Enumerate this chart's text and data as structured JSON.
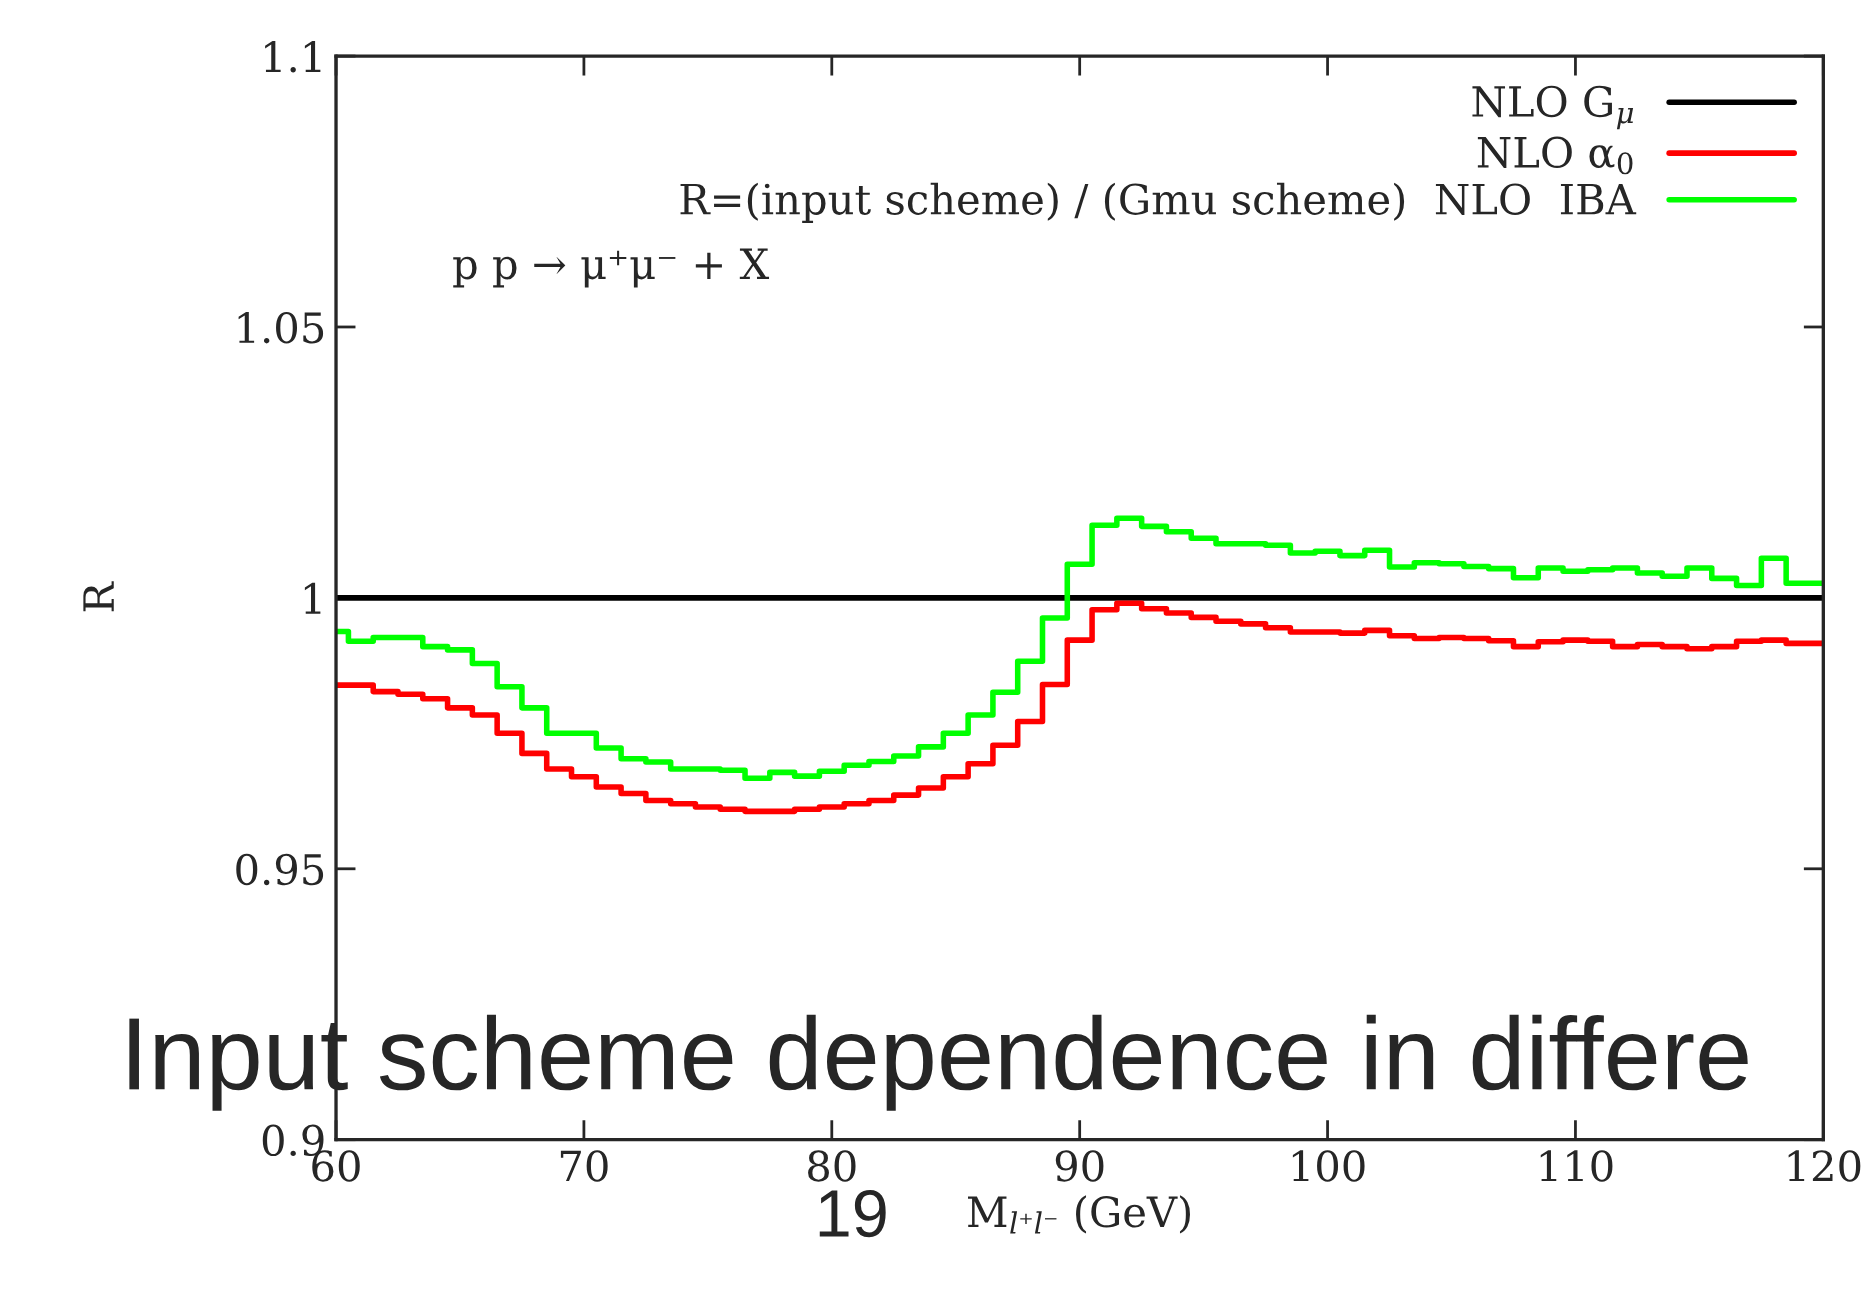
{
  "chart_data": {
    "type": "step",
    "xlabel": "M$_{l⁺l⁻}$ (GeV)",
    "ylabel": "R",
    "xlim": [
      60,
      120
    ],
    "xticks": [
      60,
      70,
      80,
      90,
      100,
      110,
      120
    ],
    "ylim": [
      0.9,
      1.1
    ],
    "yticks": [
      {
        "value": 0.9,
        "label": "0.9"
      },
      {
        "value": 0.95,
        "label": "0.95"
      },
      1,
      {
        "value": 1.05,
        "label": "1.05"
      },
      {
        "value": 1.1,
        "label": "1.1"
      }
    ],
    "grid": false,
    "legend": "top right",
    "line_style": "solid",
    "marker": "none",
    "series": [
      {
        "name": "NLO G$_{μ}$",
        "color": "#000000",
        "x": [
          60,
          120
        ],
        "values": [
          1,
          1
        ]
      },
      {
        "name": "NLO α$_{0}$",
        "color": "#ff0000",
        "x": [
          60,
          60.5,
          61.5,
          62.5,
          63.5,
          64.5,
          65.5,
          66.5,
          67.5,
          68.5,
          69.5,
          70.5,
          71.5,
          72.5,
          73.5,
          74.5,
          75.5,
          76.5,
          77.5,
          78.5,
          79.5,
          80.5,
          81.5,
          82.5,
          83.5,
          84.5,
          85.5,
          86.5,
          87.5,
          88.5,
          89.5,
          90.5,
          91.5,
          92.5,
          93.5,
          94.5,
          95.5,
          96.5,
          97.5,
          98.5,
          99.5,
          100.5,
          101.5,
          102.5,
          103.5,
          104.5,
          105.5,
          106.5,
          107.5,
          108.5,
          109.5,
          110.5,
          111.5,
          112.5,
          113.5,
          114.5,
          115.5,
          116.5,
          117.5,
          118.5,
          119.5,
          120
        ],
        "values": [
          0.9839,
          0.9839,
          0.9827,
          0.9822,
          0.9814,
          0.9797,
          0.9784,
          0.975,
          0.9713,
          0.9684,
          0.967,
          0.9651,
          0.9639,
          0.9626,
          0.962,
          0.9614,
          0.961,
          0.9606,
          0.9606,
          0.961,
          0.9614,
          0.962,
          0.9626,
          0.9636,
          0.9649,
          0.967,
          0.9694,
          0.9728,
          0.9772,
          0.984,
          0.9922,
          0.9978,
          0.999,
          0.998,
          0.9972,
          0.9964,
          0.9957,
          0.9952,
          0.9945,
          0.9937,
          0.9937,
          0.9935,
          0.994,
          0.993,
          0.9925,
          0.9927,
          0.9925,
          0.9921,
          0.991,
          0.9919,
          0.9922,
          0.992,
          0.991,
          0.9914,
          0.991,
          0.9906,
          0.991,
          0.992,
          0.9922,
          0.9916,
          0.9916,
          0.9916
        ]
      },
      {
        "name": "R=(input scheme) / (Gmu scheme)  NLO  IBA",
        "color": "#00ff00",
        "x": [
          60,
          60.5,
          61.5,
          62.5,
          63.5,
          64.5,
          65.5,
          66.5,
          67.5,
          68.5,
          69.5,
          70.5,
          71.5,
          72.5,
          73.5,
          74.5,
          75.5,
          76.5,
          77.5,
          78.5,
          79.5,
          80.5,
          81.5,
          82.5,
          83.5,
          84.5,
          85.5,
          86.5,
          87.5,
          88.5,
          89.5,
          90.5,
          91.5,
          92.5,
          93.5,
          94.5,
          95.5,
          96.5,
          97.5,
          98.5,
          99.5,
          100.5,
          101.5,
          102.5,
          103.5,
          104.5,
          105.5,
          106.5,
          107.5,
          108.5,
          109.5,
          110.5,
          111.5,
          112.5,
          113.5,
          114.5,
          115.5,
          116.5,
          117.5,
          118.5,
          119.5,
          120
        ],
        "values": [
          0.9938,
          0.992,
          0.9927,
          0.9927,
          0.991,
          0.9904,
          0.9879,
          0.9836,
          0.9797,
          0.975,
          0.975,
          0.9723,
          0.9703,
          0.9697,
          0.9684,
          0.9684,
          0.9682,
          0.9667,
          0.9678,
          0.9671,
          0.968,
          0.9691,
          0.9698,
          0.9708,
          0.9725,
          0.975,
          0.9784,
          0.9826,
          0.9883,
          0.9963,
          1.0062,
          1.0134,
          1.0147,
          1.0132,
          1.0122,
          1.011,
          1.01,
          1.01,
          1.0097,
          1.0083,
          1.0086,
          1.0078,
          1.0088,
          1.0057,
          1.0065,
          1.0063,
          1.0058,
          1.0054,
          1.0037,
          1.0055,
          1.0049,
          1.0052,
          1.0055,
          1.0046,
          1.004,
          1.0055,
          1.0036,
          1.0023,
          1.0073,
          1.0027,
          1.0027,
          1.0027
        ]
      }
    ],
    "annotations": [
      "p p → μ⁺μ⁻ + X",
      "Input scheme dependence in differe",
      "19"
    ]
  }
}
